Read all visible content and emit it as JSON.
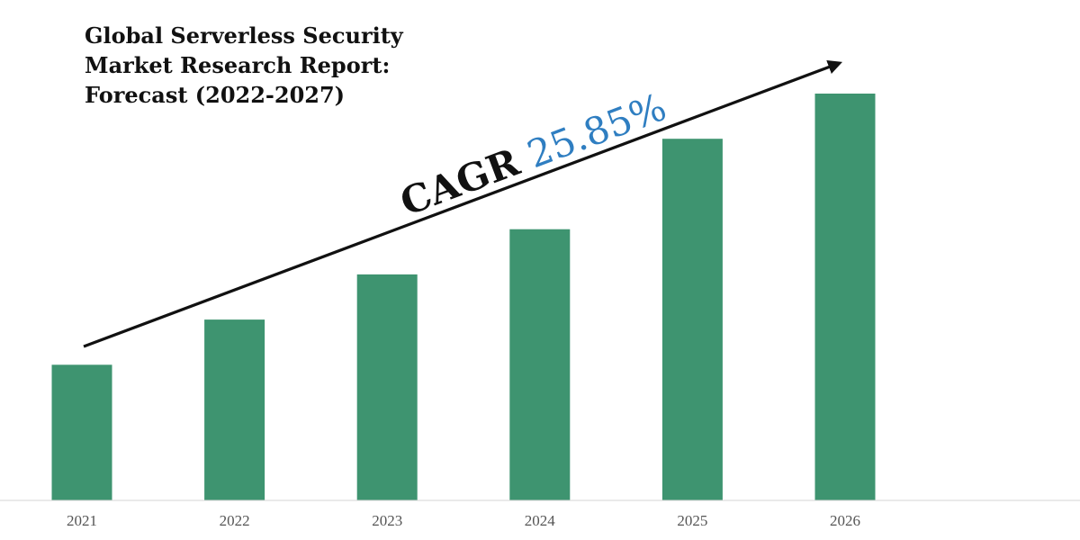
{
  "chart_data": {
    "type": "bar",
    "title_lines": [
      "Global Serverless Security",
      "Market Research Report:",
      "Forecast (2022-2027)"
    ],
    "categories": [
      "2021",
      "2022",
      "2023",
      "2024",
      "2025",
      "2026"
    ],
    "values": [
      150,
      200,
      250,
      300,
      400,
      450
    ],
    "xlabel": "",
    "ylabel": "",
    "ylim": [
      0,
      500
    ],
    "grid": false,
    "legend": "none",
    "bar_color": "#3e9470",
    "annotation": {
      "label": "CAGR",
      "value": "25.85%",
      "label_color": "#111111",
      "value_color": "#2f7ec1",
      "arrow": "rising trend arrow"
    }
  }
}
